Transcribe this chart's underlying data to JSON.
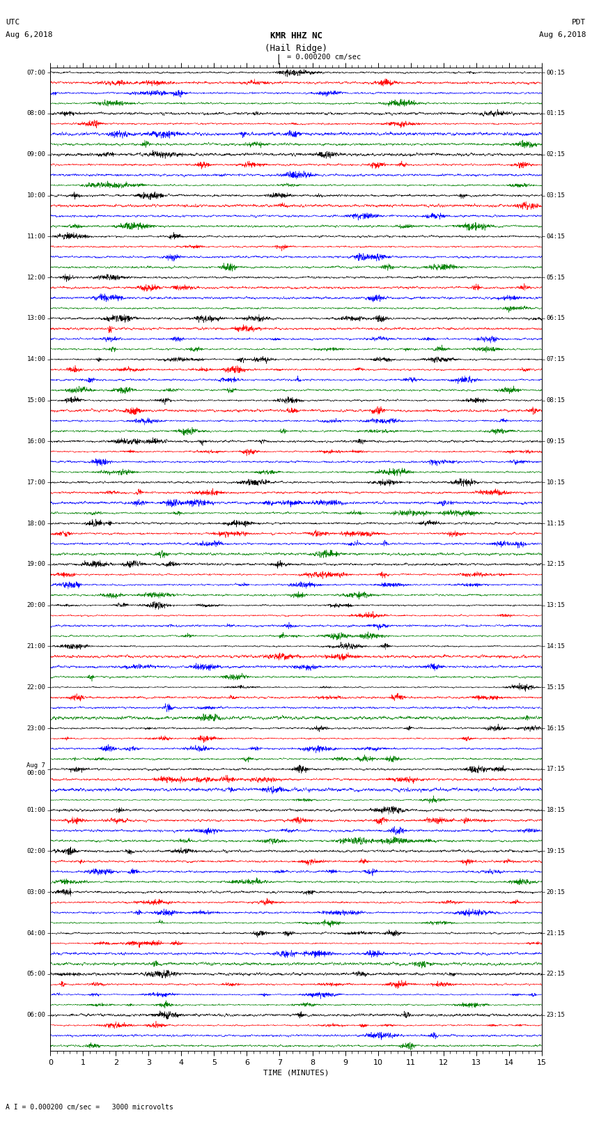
{
  "title_line1": "KMR HHZ NC",
  "title_line2": "(Hail Ridge)",
  "scale_label": "I = 0.000200 cm/sec",
  "footer_label": "A I = 0.000200 cm/sec =   3000 microvolts",
  "xlabel": "TIME (MINUTES)",
  "left_times": [
    "07:00",
    "08:00",
    "09:00",
    "10:00",
    "11:00",
    "12:00",
    "13:00",
    "14:00",
    "15:00",
    "16:00",
    "17:00",
    "18:00",
    "19:00",
    "20:00",
    "21:00",
    "22:00",
    "23:00",
    "Aug 7\n00:00",
    "01:00",
    "02:00",
    "03:00",
    "04:00",
    "05:00",
    "06:00"
  ],
  "right_times": [
    "00:15",
    "01:15",
    "02:15",
    "03:15",
    "04:15",
    "05:15",
    "06:15",
    "07:15",
    "08:15",
    "09:15",
    "10:15",
    "11:15",
    "12:15",
    "13:15",
    "14:15",
    "15:15",
    "16:15",
    "17:15",
    "18:15",
    "19:15",
    "20:15",
    "21:15",
    "22:15",
    "23:15"
  ],
  "colors": [
    "black",
    "red",
    "blue",
    "green"
  ],
  "n_groups": 24,
  "time_min": 0,
  "time_max": 15,
  "bg_color": "white",
  "fig_width": 8.5,
  "fig_height": 16.13,
  "dpi": 100
}
